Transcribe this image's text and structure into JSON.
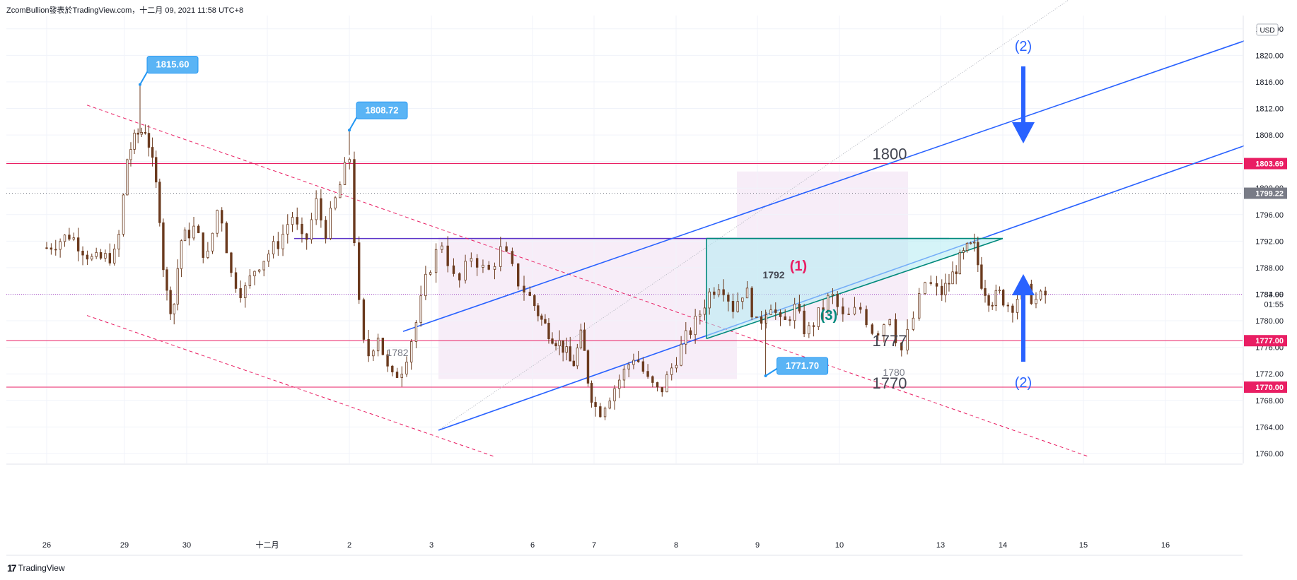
{
  "header": {
    "title": "ZcomBullion發表於TradingView.com，十二月 09, 2021 11:58 UTC+8"
  },
  "footer": {
    "brand": "TradingView",
    "logo_glyph": "17"
  },
  "colors": {
    "candle_body": "#6b3a1e",
    "candle_wick": "#6b3a1e",
    "blue_line": "#2962ff",
    "pink": "#e91e63",
    "teal": "#00897b",
    "purple_line": "#5c35c9",
    "label_blue": "#2196f3",
    "zone_fill": "#f3e5f5",
    "triangle_fill": "#b2ebf2"
  },
  "chart_data": {
    "type": "candlestick",
    "symbol_currency": "USD",
    "x_ticks": [
      "26",
      "29",
      "30",
      "十二月",
      "2",
      "3",
      "6",
      "7",
      "8",
      "9",
      "10",
      "13",
      "14",
      "15",
      "16"
    ],
    "y_ticks": [
      "1760.00",
      "1764.00",
      "1768.00",
      "1772.00",
      "1776.00",
      "1780.00",
      "1784.00",
      "1788.00",
      "1792.00",
      "1796.00",
      "1800.00",
      "1804.00",
      "1808.00",
      "1812.00",
      "1816.00",
      "1820.00",
      "1824.00"
    ],
    "ylim": [
      1758.5,
      1826
    ],
    "price_badges": [
      {
        "label": "1803.69",
        "price": 1803.69,
        "style": "pink"
      },
      {
        "label": "1799.22",
        "price": 1799.22,
        "style": "gray"
      },
      {
        "label": "1777.00",
        "price": 1777.0,
        "style": "pink"
      },
      {
        "label": "1770.00",
        "price": 1770.0,
        "style": "pink"
      }
    ],
    "current_price": {
      "label": "1783.99",
      "countdown": "01:55",
      "price": 1783.99
    },
    "horizontal_levels": [
      {
        "price": 1803.69,
        "label": "1800"
      },
      {
        "price": 1777.0,
        "label": "1777"
      },
      {
        "price": 1770.0,
        "label": "1770"
      }
    ],
    "high_low_callouts": [
      {
        "text": "1815.60",
        "price": 1815.6,
        "time": 1.25
      },
      {
        "text": "1808.72",
        "price": 1808.72,
        "time": 4.0
      },
      {
        "text": "1771.70",
        "price": 1771.7,
        "time": 9.1
      }
    ],
    "annotations": [
      {
        "text": "(1)",
        "style": "pink"
      },
      {
        "text": "1792",
        "style": "dark"
      },
      {
        "text": "(3)",
        "style": "teal"
      },
      {
        "text": "(2)",
        "style": "blue",
        "position": "top"
      },
      {
        "text": "(2)",
        "style": "blue",
        "position": "bottom"
      },
      {
        "text": "1782",
        "style": "gray"
      },
      {
        "text": "1780",
        "style": "gray"
      }
    ],
    "close_path": [
      [
        0.0,
        1791
      ],
      [
        0.3,
        1793
      ],
      [
        0.6,
        1789
      ],
      [
        0.9,
        1790
      ],
      [
        1.05,
        1805
      ],
      [
        1.2,
        1808
      ],
      [
        1.35,
        1809
      ],
      [
        1.55,
        1798
      ],
      [
        1.65,
        1785
      ],
      [
        1.78,
        1781
      ],
      [
        1.9,
        1792
      ],
      [
        2.1,
        1794
      ],
      [
        2.25,
        1789
      ],
      [
        2.4,
        1798
      ],
      [
        2.55,
        1787
      ],
      [
        2.7,
        1784
      ],
      [
        2.85,
        1788
      ],
      [
        3.0,
        1790
      ],
      [
        3.15,
        1792
      ],
      [
        3.3,
        1796
      ],
      [
        3.45,
        1791
      ],
      [
        3.6,
        1798
      ],
      [
        3.7,
        1793
      ],
      [
        3.8,
        1797
      ],
      [
        3.9,
        1801
      ],
      [
        4.0,
        1805
      ],
      [
        4.1,
        1784
      ],
      [
        4.2,
        1774
      ],
      [
        4.35,
        1778
      ],
      [
        4.5,
        1771
      ],
      [
        4.65,
        1773
      ],
      [
        4.8,
        1779
      ],
      [
        4.95,
        1787
      ],
      [
        5.1,
        1792
      ],
      [
        5.25,
        1785
      ],
      [
        5.4,
        1790
      ],
      [
        5.55,
        1787
      ],
      [
        5.7,
        1791
      ],
      [
        5.85,
        1786
      ],
      [
        6.0,
        1783
      ],
      [
        6.15,
        1780
      ],
      [
        6.3,
        1778
      ],
      [
        6.5,
        1776
      ],
      [
        6.65,
        1773
      ],
      [
        6.8,
        1778
      ],
      [
        6.92,
        1770
      ],
      [
        7.05,
        1766
      ],
      [
        7.2,
        1769
      ],
      [
        7.35,
        1772
      ],
      [
        7.5,
        1775
      ],
      [
        7.65,
        1771
      ],
      [
        7.8,
        1769
      ],
      [
        7.95,
        1773
      ],
      [
        8.1,
        1777
      ],
      [
        8.25,
        1780
      ],
      [
        8.4,
        1784
      ],
      [
        8.55,
        1786
      ],
      [
        8.7,
        1782
      ],
      [
        8.85,
        1785
      ],
      [
        9.0,
        1779
      ],
      [
        9.15,
        1783
      ],
      [
        9.3,
        1779
      ],
      [
        9.45,
        1782
      ],
      [
        9.6,
        1778
      ],
      [
        9.75,
        1781
      ],
      [
        9.9,
        1784
      ],
      [
        10.05,
        1780
      ],
      [
        10.2,
        1782
      ],
      [
        10.35,
        1778
      ],
      [
        10.5,
        1781
      ],
      [
        10.6,
        1775
      ],
      [
        10.7,
        1779
      ],
      [
        10.85,
        1786
      ],
      [
        11.0,
        1784
      ],
      [
        11.15,
        1786
      ],
      [
        11.3,
        1789
      ],
      [
        11.45,
        1791
      ],
      [
        11.55,
        1791
      ],
      [
        11.65,
        1786
      ],
      [
        11.8,
        1783
      ],
      [
        11.95,
        1784
      ],
      [
        12.1,
        1782
      ],
      [
        12.25,
        1785
      ],
      [
        12.4,
        1783
      ],
      [
        12.55,
        1784
      ]
    ]
  }
}
